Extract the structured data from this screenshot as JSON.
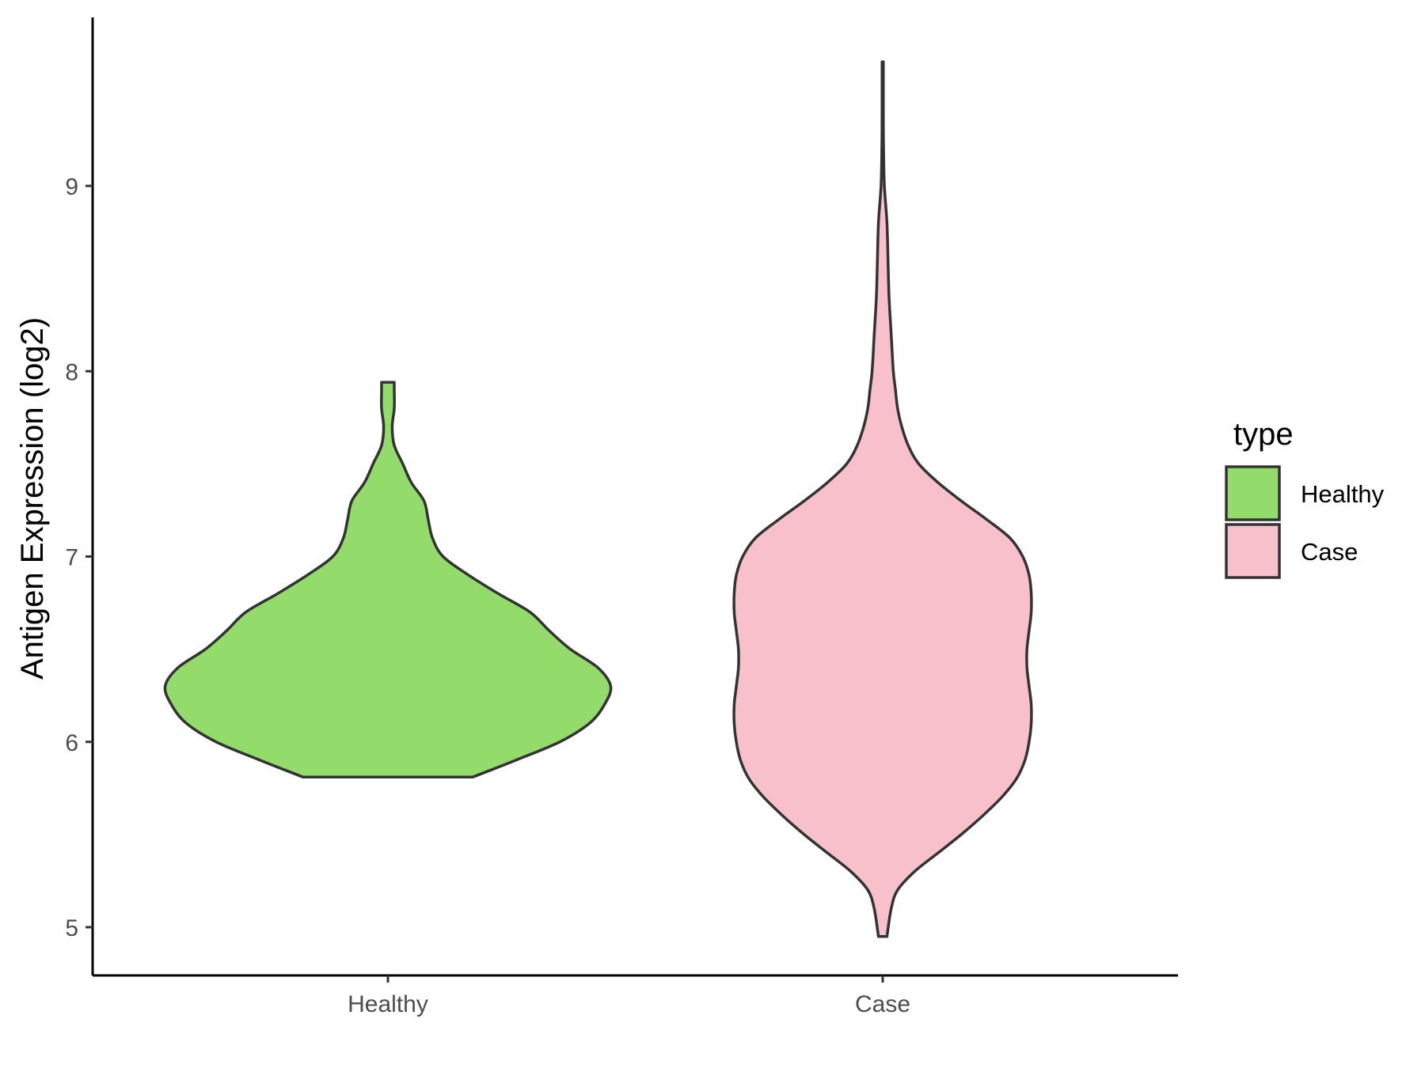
{
  "chart_data": {
    "type": "violin",
    "title": "",
    "xlabel": "",
    "ylabel": "Antigen Expression (log2)",
    "categories": [
      "Healthy",
      "Case"
    ],
    "y_ticks": [
      5,
      6,
      7,
      8,
      9
    ],
    "ylim": [
      4.7,
      9.9
    ],
    "grid": false,
    "legend": {
      "title": "type",
      "position": "right",
      "entries": [
        {
          "label": "Healthy",
          "color": "#93dc6b"
        },
        {
          "label": "Case",
          "color": "#f8c0cb"
        }
      ]
    },
    "series": [
      {
        "category": "Healthy",
        "color": "#93dc6b",
        "min": 5.81,
        "max": 7.94,
        "profile": [
          [
            5.81,
            0.4
          ],
          [
            5.9,
            0.6
          ],
          [
            6.0,
            0.81
          ],
          [
            6.1,
            0.95
          ],
          [
            6.2,
            1.02
          ],
          [
            6.3,
            1.05
          ],
          [
            6.4,
            0.99
          ],
          [
            6.5,
            0.86
          ],
          [
            6.6,
            0.76
          ],
          [
            6.7,
            0.67
          ],
          [
            6.8,
            0.52
          ],
          [
            6.9,
            0.38
          ],
          [
            7.0,
            0.26
          ],
          [
            7.1,
            0.21
          ],
          [
            7.2,
            0.19
          ],
          [
            7.3,
            0.17
          ],
          [
            7.4,
            0.11
          ],
          [
            7.5,
            0.07
          ],
          [
            7.6,
            0.03
          ],
          [
            7.7,
            0.02
          ],
          [
            7.8,
            0.03
          ],
          [
            7.9,
            0.03
          ],
          [
            7.94,
            0.03
          ]
        ]
      },
      {
        "category": "Case",
        "color": "#f8c0cb",
        "min": 4.95,
        "max": 9.67,
        "profile": [
          [
            4.95,
            0.02
          ],
          [
            5.1,
            0.04
          ],
          [
            5.2,
            0.07
          ],
          [
            5.3,
            0.15
          ],
          [
            5.4,
            0.26
          ],
          [
            5.5,
            0.37
          ],
          [
            5.6,
            0.47
          ],
          [
            5.7,
            0.56
          ],
          [
            5.8,
            0.63
          ],
          [
            5.9,
            0.67
          ],
          [
            6.0,
            0.69
          ],
          [
            6.1,
            0.7
          ],
          [
            6.2,
            0.7
          ],
          [
            6.3,
            0.69
          ],
          [
            6.4,
            0.68
          ],
          [
            6.5,
            0.68
          ],
          [
            6.6,
            0.69
          ],
          [
            6.7,
            0.7
          ],
          [
            6.8,
            0.7
          ],
          [
            6.9,
            0.69
          ],
          [
            7.0,
            0.66
          ],
          [
            7.1,
            0.6
          ],
          [
            7.2,
            0.49
          ],
          [
            7.3,
            0.37
          ],
          [
            7.4,
            0.26
          ],
          [
            7.5,
            0.17
          ],
          [
            7.6,
            0.12
          ],
          [
            7.7,
            0.09
          ],
          [
            7.8,
            0.07
          ],
          [
            7.9,
            0.06
          ],
          [
            8.0,
            0.05
          ],
          [
            8.2,
            0.04
          ],
          [
            8.4,
            0.03
          ],
          [
            8.6,
            0.025
          ],
          [
            8.8,
            0.02
          ],
          [
            9.0,
            0.008
          ],
          [
            9.2,
            0.004
          ],
          [
            9.4,
            0.003
          ],
          [
            9.67,
            0.003
          ]
        ]
      }
    ]
  }
}
